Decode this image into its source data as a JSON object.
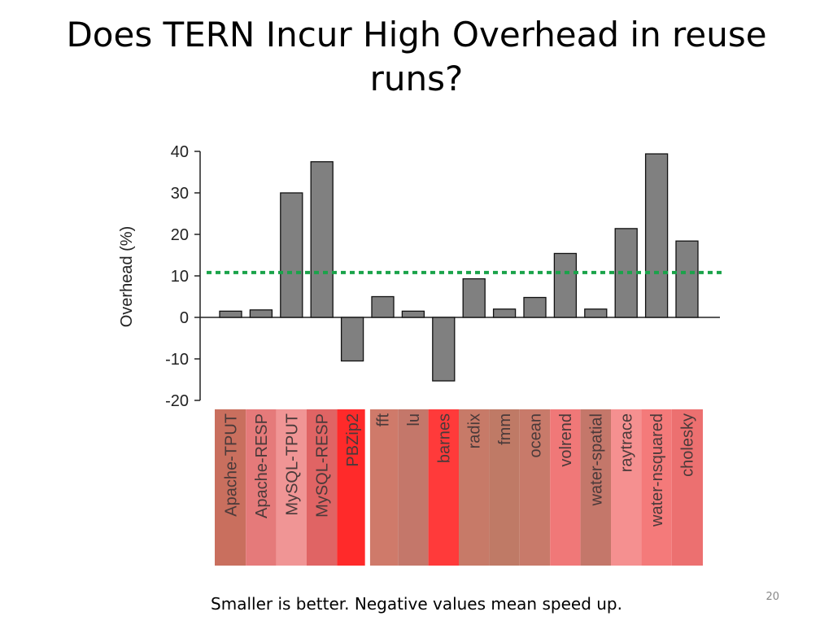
{
  "slide": {
    "title": "Does TERN Incur High Overhead in reuse runs?",
    "footnote": "Smaller is better. Negative values mean speed up.",
    "page_number": "20"
  },
  "chart_data": {
    "type": "bar",
    "title": "",
    "xlabel": "",
    "ylabel": "Overhead (%)",
    "ylim": [
      -20,
      40
    ],
    "yticks": [
      40,
      30,
      20,
      10,
      0,
      -10,
      -20
    ],
    "reference_line": {
      "value": 10.8,
      "color": "#1aa34a",
      "style": "dotted"
    },
    "bar_color": "#808080",
    "groups": [
      {
        "categories": [
          "Apache-TPUT",
          "Apache-RESP",
          "MySQL-TPUT",
          "MySQL-RESP",
          "PBZip2"
        ]
      },
      {
        "categories": [
          "fft",
          "lu",
          "barnes",
          "radix",
          "fmm",
          "ocean",
          "volrend",
          "water-spatial",
          "raytrace",
          "water-nsquared",
          "cholesky"
        ]
      }
    ],
    "categories": [
      "Apache-TPUT",
      "Apache-RESP",
      "MySQL-TPUT",
      "MySQL-RESP",
      "PBZip2",
      "fft",
      "lu",
      "barnes",
      "radix",
      "fmm",
      "ocean",
      "volrend",
      "water-spatial",
      "raytrace",
      "water-nsquared",
      "cholesky"
    ],
    "values": [
      1.5,
      1.8,
      30,
      37.5,
      -10.5,
      5,
      1.5,
      -15.3,
      9.3,
      2,
      4.8,
      15.4,
      2,
      21.4,
      39.4,
      18.4
    ],
    "highlight_colors": [
      "#c96f5e",
      "#e57a7a",
      "#f09595",
      "#e06464",
      "#ff2a2a",
      "#cf7a6a",
      "#c4776a",
      "#ff3a3a",
      "#c77a68",
      "#bf7a66",
      "#c87a6a",
      "#f07878",
      "#c4776a",
      "#f59090",
      "#f47a7a",
      "#ec7070"
    ]
  }
}
